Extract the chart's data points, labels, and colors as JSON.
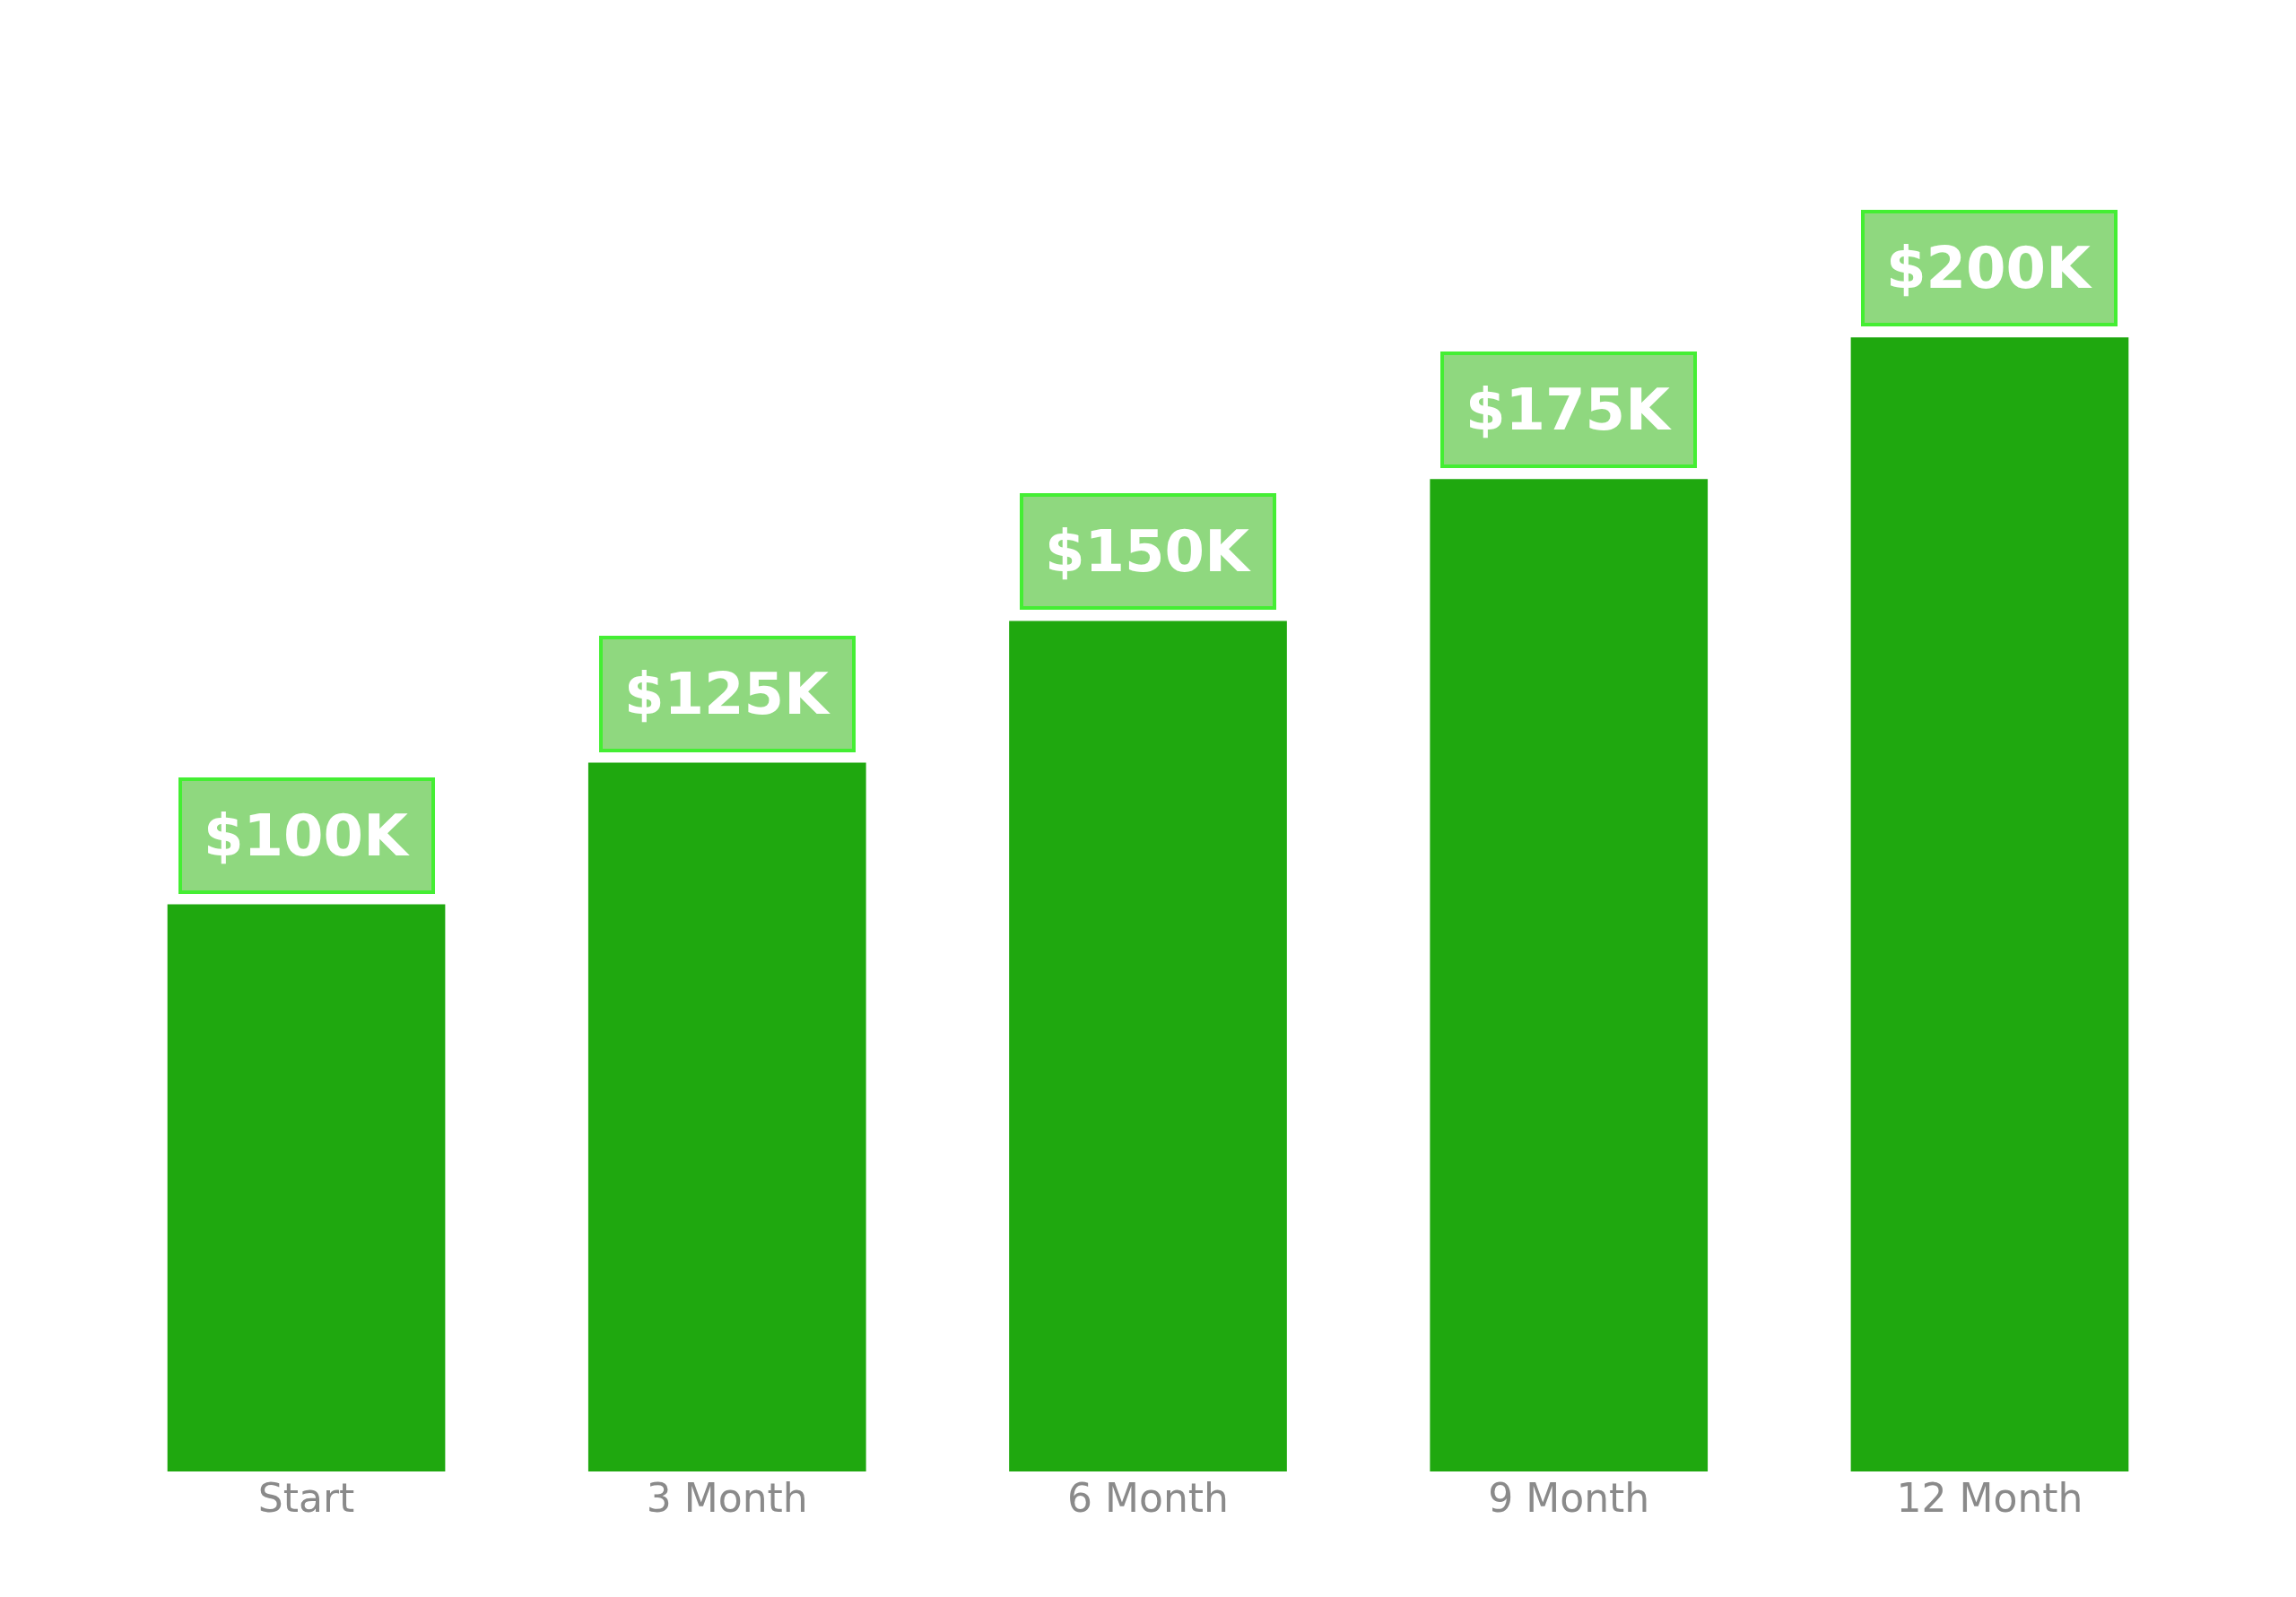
{
  "chart_data": {
    "type": "bar",
    "categories": [
      "Start",
      "3 Month",
      "6 Month",
      "9 Month",
      "12 Month"
    ],
    "values": [
      100,
      125,
      150,
      175,
      200
    ],
    "value_labels": [
      "$100K",
      "$125K",
      "$150K",
      "$175K",
      "$200K"
    ],
    "color": "#1fa80f",
    "tick_labels": "x"
  }
}
